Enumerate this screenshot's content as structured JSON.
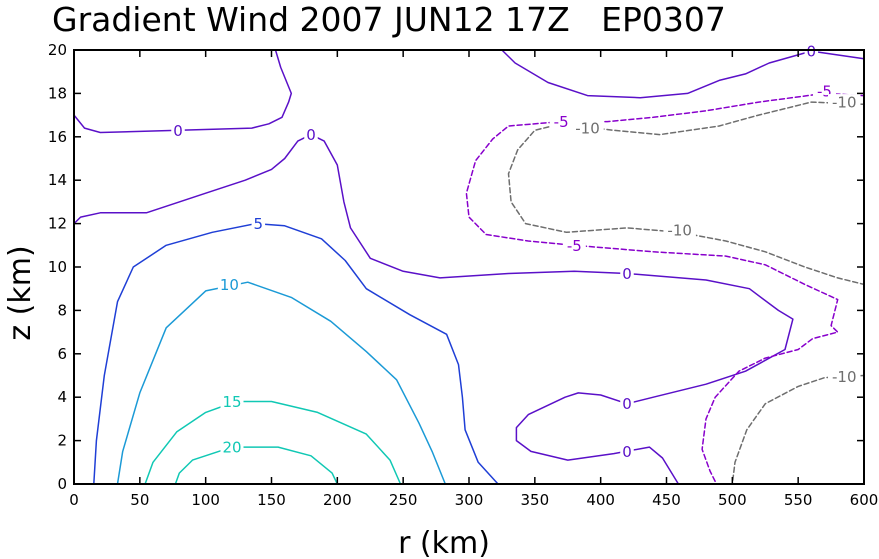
{
  "chart_data": {
    "type": "contour",
    "title": "Gradient Wind 2007 JUN12 17Z   EP0307",
    "xlabel": "r (km)",
    "ylabel": "z (km)",
    "xlim": [
      0,
      600
    ],
    "ylim": [
      0,
      20
    ],
    "xticks": [
      "0",
      "50",
      "100",
      "150",
      "200",
      "250",
      "300",
      "350",
      "400",
      "450",
      "500",
      "550",
      "600"
    ],
    "yticks": [
      "0",
      "2",
      "4",
      "6",
      "8",
      "10",
      "12",
      "14",
      "16",
      "18",
      "20"
    ],
    "colors": {
      "neg10": "#6e6e6e",
      "neg5": "#8800cc",
      "zero": "#5a10c8",
      "five": "#1f3fd6",
      "ten": "#1b9ad6",
      "fifteen": "#10c8b4",
      "twenty": "#10c8b4"
    },
    "contours": [
      {
        "level": "20",
        "color": "twenty",
        "dashed": false,
        "points": [
          [
            77,
            0
          ],
          [
            80,
            0.5
          ],
          [
            90,
            1.1
          ],
          [
            120,
            1.7
          ],
          [
            155,
            1.7
          ],
          [
            180,
            1.3
          ],
          [
            196,
            0.5
          ],
          [
            200,
            0
          ]
        ]
      },
      {
        "level": "15",
        "color": "fifteen",
        "dashed": false,
        "points": [
          [
            54,
            0
          ],
          [
            60,
            1
          ],
          [
            78,
            2.4
          ],
          [
            100,
            3.3
          ],
          [
            123,
            3.8
          ],
          [
            150,
            3.8
          ],
          [
            185,
            3.3
          ],
          [
            222,
            2.3
          ],
          [
            240,
            1.1
          ],
          [
            248,
            0
          ]
        ]
      },
      {
        "level": "10",
        "color": "ten",
        "dashed": false,
        "points": [
          [
            33,
            0
          ],
          [
            37,
            1.5
          ],
          [
            50,
            4.2
          ],
          [
            70,
            7.2
          ],
          [
            100,
            8.9
          ],
          [
            132,
            9.3
          ],
          [
            165,
            8.6
          ],
          [
            195,
            7.5
          ],
          [
            222,
            6.1
          ],
          [
            245,
            4.8
          ],
          [
            262,
            2.8
          ],
          [
            272,
            1.5
          ],
          [
            282,
            0
          ]
        ]
      },
      {
        "level": "5",
        "color": "five",
        "dashed": false,
        "points": [
          [
            15,
            0
          ],
          [
            17,
            2
          ],
          [
            23,
            5
          ],
          [
            33,
            8.4
          ],
          [
            45,
            10
          ],
          [
            70,
            11
          ],
          [
            105,
            11.6
          ],
          [
            138,
            12
          ],
          [
            160,
            11.9
          ],
          [
            188,
            11.3
          ],
          [
            206,
            10.3
          ],
          [
            222,
            9
          ],
          [
            255,
            7.8
          ],
          [
            283,
            6.9
          ],
          [
            292,
            5.5
          ],
          [
            295,
            4
          ],
          [
            297,
            2.5
          ],
          [
            307,
            1
          ],
          [
            322,
            0
          ]
        ]
      },
      {
        "level": "0",
        "color": "zero",
        "dashed": false,
        "points": [
          [
            0,
            12
          ],
          [
            5,
            12.3
          ],
          [
            20,
            12.5
          ],
          [
            55,
            12.5
          ],
          [
            80,
            13
          ],
          [
            100,
            13.4
          ],
          [
            130,
            14
          ],
          [
            150,
            14.5
          ],
          [
            160,
            15
          ],
          [
            170,
            15.8
          ],
          [
            180,
            16.1
          ],
          [
            190,
            15.8
          ],
          [
            200,
            14.7
          ],
          [
            205,
            13
          ],
          [
            210,
            11.8
          ],
          [
            225,
            10.4
          ],
          [
            250,
            9.8
          ],
          [
            278,
            9.5
          ],
          [
            330,
            9.7
          ],
          [
            380,
            9.8
          ],
          [
            420,
            9.7
          ],
          [
            480,
            9.4
          ],
          [
            513,
            9
          ],
          [
            535,
            8
          ],
          [
            546,
            7.6
          ],
          [
            540,
            6.2
          ],
          [
            510,
            5.2
          ],
          [
            480,
            4.6
          ],
          [
            440,
            4
          ],
          [
            420,
            3.7
          ],
          [
            400,
            4.1
          ],
          [
            383,
            4.2
          ],
          [
            373,
            4
          ],
          [
            345,
            3.2
          ],
          [
            336,
            2.6
          ],
          [
            336,
            2
          ],
          [
            347,
            1.5
          ],
          [
            375,
            1.1
          ],
          [
            410,
            1.4
          ],
          [
            437,
            1.7
          ],
          [
            447,
            1.2
          ],
          [
            459,
            0
          ]
        ]
      },
      {
        "level": "0",
        "color": "zero",
        "dashed": false,
        "points": [
          [
            0,
            17
          ],
          [
            8,
            16.4
          ],
          [
            20,
            16.2
          ],
          [
            80,
            16.3
          ],
          [
            135,
            16.4
          ],
          [
            148,
            16.6
          ],
          [
            158,
            16.9
          ],
          [
            163,
            17.6
          ],
          [
            165,
            18
          ],
          [
            157,
            19.2
          ],
          [
            153,
            20
          ]
        ]
      },
      {
        "level": "0",
        "color": "zero",
        "dashed": false,
        "points": [
          [
            325,
            20
          ],
          [
            335,
            19.4
          ],
          [
            360,
            18.5
          ],
          [
            390,
            17.9
          ],
          [
            430,
            17.8
          ],
          [
            466,
            18
          ],
          [
            490,
            18.6
          ],
          [
            510,
            18.9
          ],
          [
            528,
            19.4
          ],
          [
            560,
            19.95
          ],
          [
            600,
            19.6
          ]
        ]
      },
      {
        "level": "-5",
        "color": "neg5",
        "dashed": true,
        "points": [
          [
            600,
            17.9
          ],
          [
            570,
            18
          ],
          [
            520,
            17.6
          ],
          [
            480,
            17.2
          ],
          [
            440,
            16.9
          ],
          [
            405,
            16.7
          ],
          [
            370,
            16.7
          ],
          [
            330,
            16.5
          ],
          [
            318,
            15.9
          ],
          [
            305,
            14.9
          ],
          [
            298,
            13.4
          ],
          [
            300,
            12.3
          ],
          [
            313,
            11.5
          ],
          [
            345,
            11.2
          ],
          [
            380,
            11
          ],
          [
            440,
            10.7
          ],
          [
            495,
            10.5
          ],
          [
            525,
            10.1
          ],
          [
            555,
            9.2
          ],
          [
            580,
            8.5
          ],
          [
            575,
            7.3
          ],
          [
            580,
            7
          ],
          [
            561,
            6.7
          ],
          [
            550,
            6.2
          ],
          [
            525,
            5.8
          ],
          [
            505,
            5.2
          ],
          [
            487,
            4
          ],
          [
            480,
            3
          ],
          [
            477,
            1.6
          ],
          [
            483,
            0.6
          ],
          [
            488,
            0
          ]
        ]
      },
      {
        "level": "-10",
        "color": "neg10",
        "dashed": true,
        "points": [
          [
            600,
            17.5
          ],
          [
            560,
            17.6
          ],
          [
            520,
            17
          ],
          [
            490,
            16.5
          ],
          [
            445,
            16.1
          ],
          [
            410,
            16.3
          ],
          [
            370,
            16.6
          ],
          [
            350,
            16.3
          ],
          [
            337,
            15.4
          ],
          [
            330,
            14.3
          ],
          [
            332,
            13
          ],
          [
            343,
            12
          ],
          [
            374,
            11.6
          ],
          [
            420,
            11.8
          ],
          [
            460,
            11.6
          ],
          [
            495,
            11.2
          ],
          [
            525,
            10.7
          ],
          [
            555,
            10
          ],
          [
            580,
            9.5
          ],
          [
            600,
            9.2
          ]
        ]
      },
      {
        "level": "-10",
        "color": "neg10",
        "dashed": true,
        "points": [
          [
            600,
            5
          ],
          [
            570,
            4.9
          ],
          [
            550,
            4.5
          ],
          [
            525,
            3.7
          ],
          [
            511,
            2.5
          ],
          [
            502,
            1
          ],
          [
            500,
            0
          ]
        ]
      }
    ],
    "labels": [
      {
        "text": "20",
        "color": "twenty",
        "x": 120,
        "y": 1.7
      },
      {
        "text": "15",
        "color": "fifteen",
        "x": 120,
        "y": 3.8
      },
      {
        "text": "10",
        "color": "ten",
        "x": 118,
        "y": 9.2
      },
      {
        "text": "5",
        "color": "five",
        "x": 140,
        "y": 12
      },
      {
        "text": "0",
        "color": "zero",
        "x": 79,
        "y": 16.3
      },
      {
        "text": "0",
        "color": "zero",
        "x": 180,
        "y": 16.1
      },
      {
        "text": "0",
        "color": "zero",
        "x": 420,
        "y": 9.7
      },
      {
        "text": "0",
        "color": "zero",
        "x": 420,
        "y": 3.7
      },
      {
        "text": "0",
        "color": "zero",
        "x": 420,
        "y": 1.5
      },
      {
        "text": "0",
        "color": "zero",
        "x": 560,
        "y": 19.95
      },
      {
        "text": "-5",
        "color": "neg5",
        "x": 370,
        "y": 16.7
      },
      {
        "text": "-5",
        "color": "neg5",
        "x": 570,
        "y": 18.1
      },
      {
        "text": "-5",
        "color": "neg5",
        "x": 380,
        "y": 11
      },
      {
        "text": "-10",
        "color": "neg10",
        "x": 390,
        "y": 16.4
      },
      {
        "text": "-10",
        "color": "neg10",
        "x": 585,
        "y": 17.6
      },
      {
        "text": "-10",
        "color": "neg10",
        "x": 460,
        "y": 11.7
      },
      {
        "text": "-10",
        "color": "neg10",
        "x": 585,
        "y": 4.95
      }
    ]
  }
}
